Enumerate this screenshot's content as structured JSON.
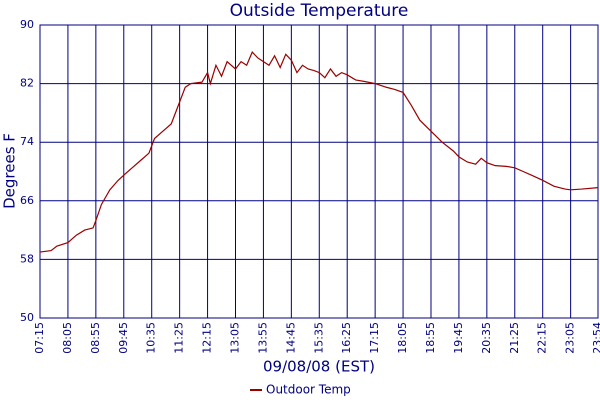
{
  "chart_data": {
    "type": "line",
    "title": "Outside Temperature",
    "xlabel": "09/08/08 (EST)",
    "ylabel": "Degrees F",
    "x": [
      435,
      455,
      465,
      485,
      500,
      515,
      530,
      535,
      545,
      560,
      575,
      585,
      600,
      615,
      630,
      640,
      655,
      670,
      680,
      685,
      695,
      705,
      725,
      735,
      740,
      750,
      760,
      770,
      785,
      795,
      805,
      815,
      825,
      835,
      845,
      855,
      865,
      875,
      885,
      895,
      905,
      915,
      925,
      935,
      945,
      955,
      965,
      975,
      985,
      1000,
      1015,
      1035,
      1055,
      1070,
      1085,
      1100,
      1115,
      1135,
      1155,
      1175,
      1185,
      1200,
      1215,
      1225,
      1235,
      1250,
      1270,
      1285,
      1300,
      1315,
      1335,
      1355,
      1375,
      1385,
      1405,
      1434
    ],
    "series": [
      {
        "name": "Outdoor Temp",
        "color": "#990000",
        "values": [
          59.0,
          59.2,
          59.8,
          60.3,
          61.3,
          62.0,
          62.3,
          63.3,
          65.5,
          67.5,
          68.8,
          69.5,
          70.5,
          71.5,
          72.5,
          74.5,
          75.5,
          76.5,
          78.5,
          79.5,
          81.5,
          82.0,
          82.2,
          83.5,
          82.0,
          84.5,
          83.0,
          85.0,
          84.0,
          85.0,
          84.5,
          86.3,
          85.5,
          85.0,
          84.5,
          85.8,
          84.2,
          86.0,
          85.2,
          83.5,
          84.5,
          84.0,
          83.8,
          83.5,
          82.8,
          84.0,
          83.0,
          83.5,
          83.2,
          82.5,
          82.3,
          82.0,
          81.5,
          81.2,
          80.8,
          79.0,
          77.0,
          75.5,
          74.0,
          72.8,
          72.0,
          71.3,
          71.0,
          71.8,
          71.2,
          70.8,
          70.7,
          70.5,
          70.0,
          69.5,
          68.8,
          68.0,
          67.6,
          67.5,
          67.6,
          67.8
        ]
      }
    ],
    "xlim": [
      435,
      1434
    ],
    "xticks": [
      {
        "value": 435,
        "label": "07:15"
      },
      {
        "value": 485,
        "label": "08:05"
      },
      {
        "value": 535,
        "label": "08:55"
      },
      {
        "value": 585,
        "label": "09:45"
      },
      {
        "value": 635,
        "label": "10:35"
      },
      {
        "value": 685,
        "label": "11:25"
      },
      {
        "value": 735,
        "label": "12:15"
      },
      {
        "value": 785,
        "label": "13:05"
      },
      {
        "value": 835,
        "label": "13:55"
      },
      {
        "value": 885,
        "label": "14:45"
      },
      {
        "value": 935,
        "label": "15:35"
      },
      {
        "value": 985,
        "label": "16:25"
      },
      {
        "value": 1035,
        "label": "17:15"
      },
      {
        "value": 1085,
        "label": "18:05"
      },
      {
        "value": 1135,
        "label": "18:55"
      },
      {
        "value": 1185,
        "label": "19:45"
      },
      {
        "value": 1235,
        "label": "20:35"
      },
      {
        "value": 1285,
        "label": "21:25"
      },
      {
        "value": 1335,
        "label": "22:15"
      },
      {
        "value": 1385,
        "label": "23:05"
      },
      {
        "value": 1434,
        "label": "23:54"
      }
    ],
    "ylim": [
      50,
      90
    ],
    "yticks": [
      50,
      58,
      66,
      74,
      82,
      90
    ],
    "grid": true
  }
}
